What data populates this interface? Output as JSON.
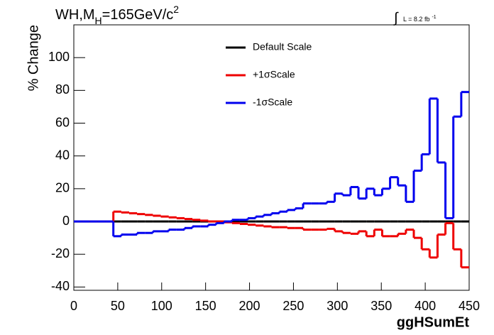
{
  "chart_data": {
    "type": "step-histogram",
    "title": {
      "main": "WH,M",
      "sub": "H",
      "rest": "=165GeV/c",
      "sup": "2"
    },
    "lumi": {
      "integral": "∫",
      "text": "L = 8.2 fb",
      "sup": "-1"
    },
    "y_label": "% Change",
    "x_label": "ggHSumEt",
    "bins": [
      0,
      9,
      18,
      27,
      36,
      45,
      54,
      63,
      72,
      81,
      90,
      99,
      108,
      117,
      126,
      135,
      144,
      153,
      162,
      171,
      180,
      189,
      198,
      207,
      216,
      225,
      234,
      243,
      252,
      261,
      270,
      279,
      288,
      297,
      306,
      315,
      324,
      333,
      342,
      351,
      360,
      369,
      378,
      387,
      396,
      405,
      414,
      423,
      432,
      441,
      450
    ],
    "series": [
      {
        "name": "Default Scale",
        "color": "#000000",
        "values": [
          0,
          0,
          0,
          0,
          0,
          0,
          0,
          0,
          0,
          0,
          0,
          0,
          0,
          0,
          0,
          0,
          0,
          0,
          0,
          0,
          0,
          0,
          0,
          0,
          0,
          0,
          0,
          0,
          0,
          0,
          0,
          0,
          0,
          0,
          0,
          0,
          0,
          0,
          0,
          0,
          0,
          0,
          0,
          0,
          0,
          0,
          0,
          0,
          0,
          0
        ]
      },
      {
        "name": "+1σScale",
        "color": "#ee0000",
        "values": [
          0,
          0,
          0,
          0,
          0,
          6,
          5.5,
          5,
          4.5,
          4,
          3.5,
          3,
          2.5,
          2,
          1.5,
          1,
          0.5,
          0,
          0,
          -0.5,
          -1,
          -1.5,
          -2,
          -2.5,
          -3,
          -3.5,
          -3.5,
          -4,
          -4,
          -5,
          -5,
          -5,
          -4.5,
          -6,
          -7,
          -7.5,
          -6,
          -9,
          -5,
          -9,
          -9,
          -7.5,
          -5,
          -10,
          -17,
          -22,
          -8,
          -1,
          -17,
          -28
        ]
      },
      {
        "name": "-1σScale",
        "color": "#0000ee",
        "values": [
          0,
          0,
          0,
          0,
          0,
          -9,
          -8,
          -8,
          -7,
          -7,
          -6,
          -6,
          -5,
          -5,
          -4,
          -3,
          -3,
          -2,
          -1,
          0,
          1,
          1,
          2,
          3,
          4,
          5,
          6,
          7,
          8,
          11,
          11,
          11,
          12,
          17,
          16,
          21,
          14,
          20,
          16,
          20,
          27,
          22,
          12,
          31,
          41,
          75,
          36,
          2,
          64,
          79
        ]
      }
    ],
    "xlim": [
      0,
      450
    ],
    "xticks": [
      0,
      50,
      100,
      150,
      200,
      250,
      300,
      350,
      400,
      450
    ],
    "ylim": [
      -42,
      120
    ],
    "yticks": [
      -40,
      -20,
      0,
      20,
      40,
      60,
      80,
      100
    ]
  }
}
